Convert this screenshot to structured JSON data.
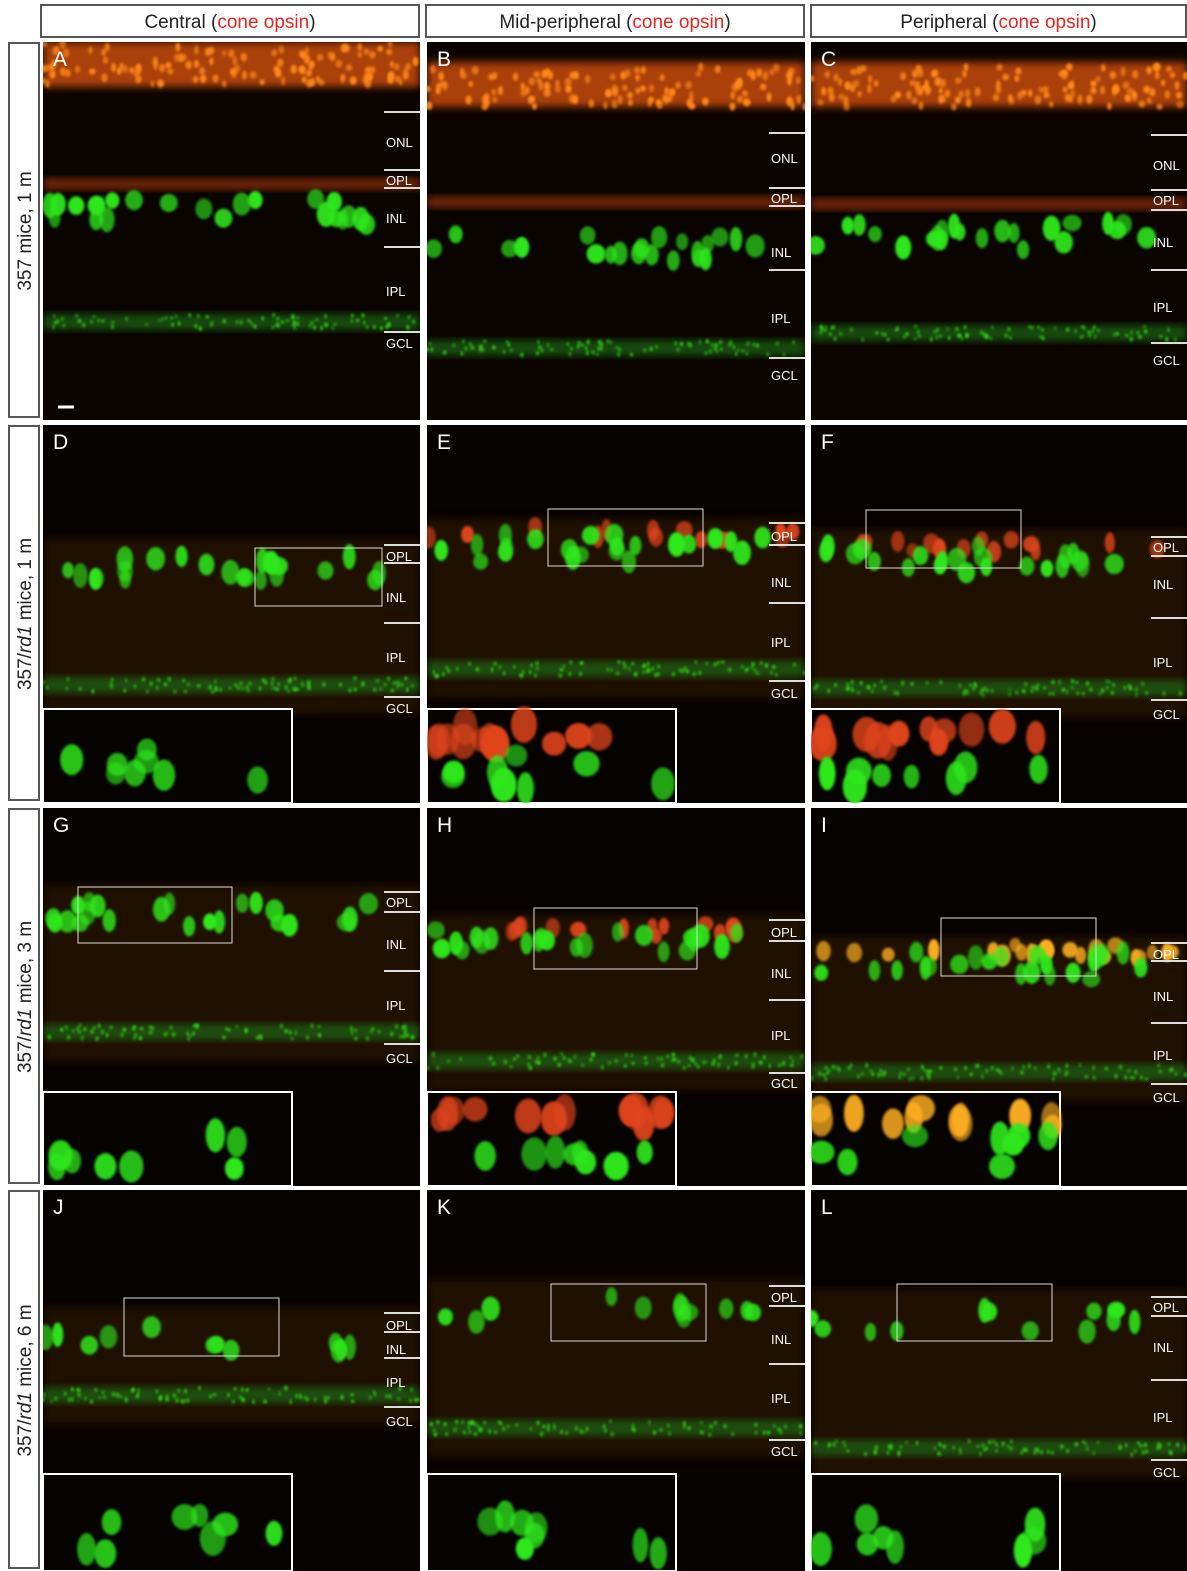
{
  "columns": [
    {
      "before": "Central (",
      "stain": "cone opsin",
      "after": ")"
    },
    {
      "before": "Mid-peripheral (",
      "stain": "cone opsin",
      "after": ")"
    },
    {
      "before": "Peripheral (",
      "stain": "cone opsin",
      "after": ")"
    }
  ],
  "rows": [
    {
      "prefix": "357 mice, 1 m"
    },
    {
      "prefix": "357/",
      "italic": "rd1",
      "suffix": " mice, 1 m"
    },
    {
      "prefix": "357/",
      "italic": "rd1",
      "suffix": " mice, 3 m"
    },
    {
      "prefix": "357/",
      "italic": "rd1",
      "suffix": " mice, 6 m"
    }
  ],
  "panels": [
    {
      "letter": "A",
      "layers": [
        "ONL",
        "OPL",
        "INL",
        "IPL",
        "GCL"
      ]
    },
    {
      "letter": "B",
      "layers": [
        "ONL",
        "OPL",
        "INL",
        "IPL",
        "GCL"
      ]
    },
    {
      "letter": "C",
      "layers": [
        "ONL",
        "OPL",
        "INL",
        "IPL",
        "GCL"
      ]
    },
    {
      "letter": "D",
      "layers": [
        "OPL",
        "INL",
        "IPL",
        "GCL"
      ]
    },
    {
      "letter": "E",
      "layers": [
        "OPL",
        "INL",
        "IPL",
        "GCL"
      ]
    },
    {
      "letter": "F",
      "layers": [
        "OPL",
        "INL",
        "IPL",
        "GCL"
      ]
    },
    {
      "letter": "G",
      "layers": [
        "OPL",
        "INL",
        "IPL",
        "GCL"
      ]
    },
    {
      "letter": "H",
      "layers": [
        "OPL",
        "INL",
        "IPL",
        "GCL"
      ]
    },
    {
      "letter": "I",
      "layers": [
        "OPL",
        "INL",
        "IPL",
        "GCL"
      ]
    },
    {
      "letter": "J",
      "layers": [
        "OPL",
        "INL",
        "IPL",
        "GCL"
      ]
    },
    {
      "letter": "K",
      "layers": [
        "OPL",
        "INL",
        "IPL",
        "GCL"
      ]
    },
    {
      "letter": "L",
      "layers": [
        "OPL",
        "INL",
        "IPL",
        "GCL"
      ]
    }
  ]
}
